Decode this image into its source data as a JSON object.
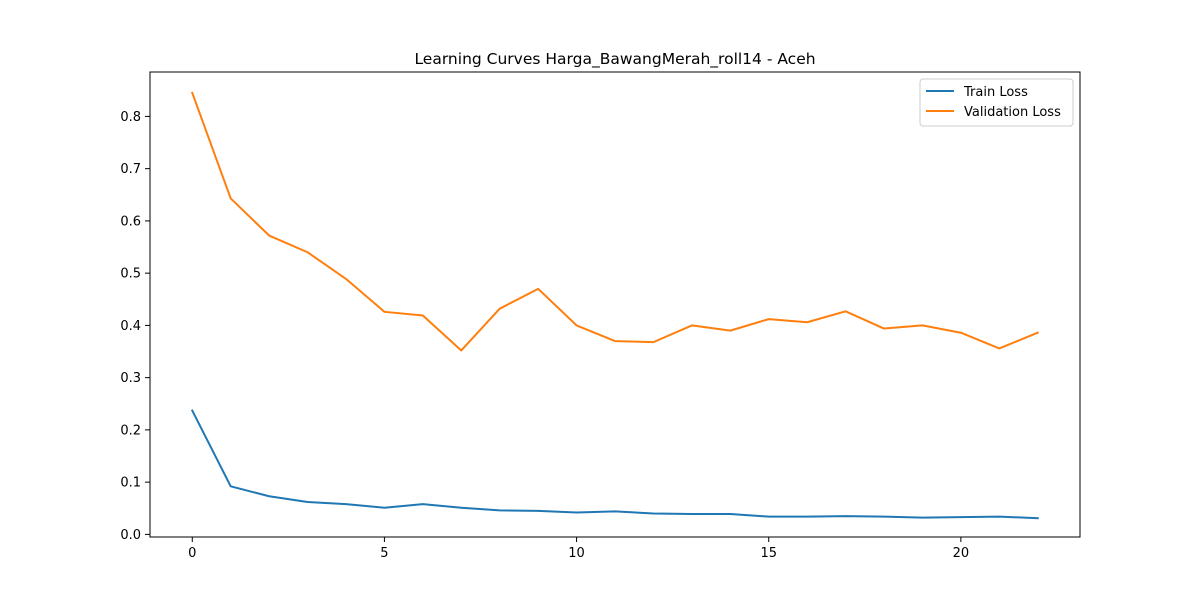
{
  "chart_data": {
    "type": "line",
    "title": "Learning Curves Harga_BawangMerah_roll14 - Aceh",
    "xlabel": "",
    "ylabel": "",
    "x": [
      0,
      1,
      2,
      3,
      4,
      5,
      6,
      7,
      8,
      9,
      10,
      11,
      12,
      13,
      14,
      15,
      16,
      17,
      18,
      19,
      20,
      21,
      22
    ],
    "xlim": [
      -1.1,
      23.1
    ],
    "ylim": [
      -0.005,
      0.885
    ],
    "xticks": [
      0,
      5,
      10,
      15,
      20
    ],
    "yticks": [
      0.0,
      0.1,
      0.2,
      0.3,
      0.4,
      0.5,
      0.6,
      0.7,
      0.8
    ],
    "xtick_labels": [
      "0",
      "5",
      "10",
      "15",
      "20"
    ],
    "ytick_labels": [
      "0.0",
      "0.1",
      "0.2",
      "0.3",
      "0.4",
      "0.5",
      "0.6",
      "0.7",
      "0.8"
    ],
    "grid": false,
    "legend_position": "top-right",
    "series": [
      {
        "name": "Train Loss",
        "color": "#1f77b4",
        "values": [
          0.237,
          0.092,
          0.073,
          0.062,
          0.058,
          0.051,
          0.058,
          0.051,
          0.046,
          0.045,
          0.042,
          0.044,
          0.04,
          0.039,
          0.039,
          0.034,
          0.034,
          0.035,
          0.034,
          0.032,
          0.033,
          0.034,
          0.031
        ]
      },
      {
        "name": "Validation Loss",
        "color": "#ff7f0e",
        "values": [
          0.845,
          0.643,
          0.572,
          0.54,
          0.489,
          0.426,
          0.419,
          0.352,
          0.432,
          0.47,
          0.4,
          0.37,
          0.368,
          0.4,
          0.39,
          0.412,
          0.406,
          0.427,
          0.394,
          0.4,
          0.386,
          0.356,
          0.386
        ]
      }
    ]
  }
}
